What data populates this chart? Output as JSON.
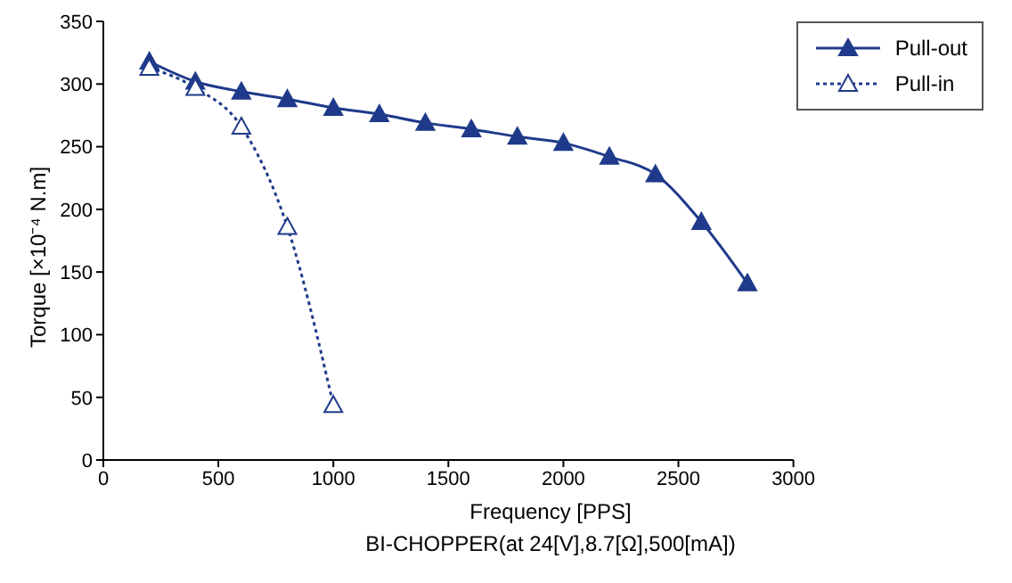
{
  "chart_data": {
    "type": "line",
    "xlabel": "Frequency [PPS]",
    "ylabel": "Torque [×10⁻⁴ N.m]",
    "annotations": [
      "BI-CHOPPER(at 24[V],8.7[Ω],500[mA])"
    ],
    "xlim": [
      0,
      3000
    ],
    "xticks": [
      0,
      500,
      1000,
      1500,
      2000,
      2500,
      3000
    ],
    "ylim": [
      0,
      350
    ],
    "yticks": [
      0,
      50,
      100,
      150,
      200,
      250,
      300,
      350
    ],
    "grid": false,
    "legend": "top right",
    "marker": "triangle",
    "series": [
      {
        "name": "Pull-out",
        "color": "#1f3a8a",
        "line_style": "solid",
        "x": [
          200,
          400,
          600,
          800,
          1000,
          1200,
          1400,
          1600,
          1800,
          2000,
          2200,
          2400,
          2600,
          2800
        ],
        "values": [
          318,
          302,
          294,
          288,
          281,
          276,
          269,
          264,
          258,
          253,
          242,
          228,
          190,
          141
        ]
      },
      {
        "name": "Pull-in",
        "color": "#1f3a8a",
        "line_style": "dotted",
        "x": [
          200,
          400,
          600,
          800,
          1000
        ],
        "values": [
          313,
          297,
          266,
          186,
          44
        ]
      }
    ]
  }
}
